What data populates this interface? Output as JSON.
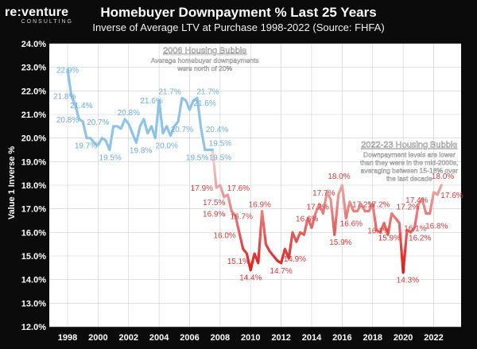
{
  "logo": {
    "main": "re:venture",
    "sub": "CONSULTING"
  },
  "header": {
    "title": "Homebuyer Downpayment % Last 25 Years",
    "subtitle": "Inverse of Average LTV at Purchase 1998-2022 (Source: FHFA)"
  },
  "colors": {
    "background": "#0b0b0b",
    "plot_background": "#ffffff",
    "grid": "#d0d0d0",
    "early_line": "#8fc3ea",
    "early_label": "#6aaee0",
    "late_line_light": "#f3c9c9",
    "late_line_dark": "#e02020",
    "late_label": "#e03a3a",
    "annotation_text": "#ffffff"
  },
  "chart_data": {
    "type": "line",
    "title": "Homebuyer Downpayment % Last 25 Years",
    "subtitle": "Inverse of Average LTV at Purchase 1998-2022 (Source: FHFA)",
    "xlabel": "",
    "ylabel": "Value 1 Inverse %",
    "xlim": [
      1996.8,
      2023.8
    ],
    "ylim": [
      12.0,
      24.0
    ],
    "x_ticks": [
      1998,
      2000,
      2002,
      2004,
      2006,
      2008,
      2010,
      2012,
      2014,
      2016,
      2018,
      2020,
      2022
    ],
    "y_ticks": [
      "12.0%",
      "13.0%",
      "14.0%",
      "15.0%",
      "16.0%",
      "17.0%",
      "18.0%",
      "19.0%",
      "20.0%",
      "21.0%",
      "22.0%",
      "23.0%",
      "24.0%"
    ],
    "grid": true,
    "series": [
      {
        "x": [
          1998.0,
          1998.25,
          1998.5,
          1998.75,
          1999.0,
          1999.25,
          1999.5,
          1999.75,
          2000.0,
          2000.25,
          2000.5,
          2000.75,
          2001.0,
          2001.25,
          2001.5,
          2001.75,
          2002.0,
          2002.25,
          2002.5,
          2002.75,
          2003.0,
          2003.25,
          2003.5,
          2003.75,
          2004.0,
          2004.25,
          2004.5,
          2004.75,
          2005.0,
          2005.25,
          2005.5,
          2005.75,
          2006.0,
          2006.25,
          2006.5,
          2006.75,
          2007.0,
          2007.25,
          2007.5,
          2007.75,
          2008.0,
          2008.25,
          2008.5,
          2008.75,
          2009.0,
          2009.25,
          2009.5,
          2009.75,
          2010.0,
          2010.25,
          2010.5,
          2010.75,
          2011.0,
          2011.25,
          2011.5,
          2011.75,
          2012.0,
          2012.25,
          2012.5,
          2012.75,
          2013.0,
          2013.25,
          2013.5,
          2013.75,
          2014.0,
          2014.25,
          2014.5,
          2014.75,
          2015.0,
          2015.25,
          2015.5,
          2015.75,
          2016.0,
          2016.25,
          2016.5,
          2016.75,
          2017.0,
          2017.25,
          2017.5,
          2017.75,
          2018.0,
          2018.25,
          2018.5,
          2018.75,
          2019.0,
          2019.25,
          2019.5,
          2019.75,
          2020.0,
          2020.25,
          2020.5,
          2020.75,
          2021.0,
          2021.25,
          2021.5,
          2021.75,
          2022.0,
          2022.25,
          2022.5
        ],
        "y": [
          22.9,
          21.8,
          21.4,
          20.8,
          20.7,
          20.0,
          20.0,
          19.8,
          19.7,
          20.0,
          19.9,
          19.5,
          20.5,
          20.5,
          20.4,
          20.8,
          20.6,
          20.2,
          19.8,
          20.5,
          20.8,
          20.2,
          20.5,
          20.0,
          21.6,
          20.2,
          20.5,
          20.1,
          20.5,
          20.7,
          21.7,
          21.6,
          21.2,
          21.6,
          21.7,
          20.4,
          19.5,
          19.5,
          19.5,
          17.9,
          18.0,
          17.5,
          17.6,
          16.9,
          16.7,
          16.0,
          15.3,
          15.1,
          14.4,
          15.1,
          14.7,
          16.9,
          15.5,
          15.2,
          15.0,
          14.8,
          14.7,
          15.3,
          14.9,
          16.0,
          15.6,
          16.0,
          15.9,
          16.6,
          16.2,
          16.8,
          17.2,
          16.8,
          17.7,
          17.4,
          15.9,
          17.6,
          18.0,
          16.6,
          17.3,
          16.9,
          16.9,
          17.2,
          16.9,
          16.9,
          17.2,
          16.1,
          16.0,
          16.4,
          15.9,
          16.8,
          16.6,
          16.4,
          14.3,
          16.1,
          16.0,
          16.2,
          17.2,
          17.4,
          16.8,
          16.8,
          17.7,
          17.6,
          18.0
        ]
      }
    ],
    "data_labels": [
      {
        "text": "22.9%",
        "x": 1998.0,
        "y": 22.9,
        "group": "early"
      },
      {
        "text": "21.8%",
        "x": 1997.8,
        "y": 21.8,
        "group": "early"
      },
      {
        "text": "21.4%",
        "x": 1998.9,
        "y": 21.4,
        "group": "early"
      },
      {
        "text": "20.8%",
        "x": 1998.0,
        "y": 20.8,
        "group": "early"
      },
      {
        "text": "20.7%",
        "x": 2000.0,
        "y": 20.7,
        "group": "early"
      },
      {
        "text": "19.7%",
        "x": 1999.2,
        "y": 19.7,
        "group": "early"
      },
      {
        "text": "19.5%",
        "x": 2000.8,
        "y": 19.2,
        "group": "early"
      },
      {
        "text": "20.8%",
        "x": 2002.0,
        "y": 21.1,
        "group": "early"
      },
      {
        "text": "19.8%",
        "x": 2002.8,
        "y": 19.5,
        "group": "early"
      },
      {
        "text": "21.6%",
        "x": 2003.5,
        "y": 21.6,
        "group": "early"
      },
      {
        "text": "20.0%",
        "x": 2004.5,
        "y": 19.7,
        "group": "early"
      },
      {
        "text": "21.7%",
        "x": 2004.7,
        "y": 22.0,
        "group": "early"
      },
      {
        "text": "20.7%",
        "x": 2005.5,
        "y": 20.4,
        "group": "early"
      },
      {
        "text": "21.7%",
        "x": 2007.2,
        "y": 22.0,
        "group": "early"
      },
      {
        "text": "21.6%",
        "x": 2007.0,
        "y": 21.5,
        "group": "early"
      },
      {
        "text": "20.4%",
        "x": 2007.8,
        "y": 20.4,
        "group": "early"
      },
      {
        "text": "19.5%",
        "x": 2008.0,
        "y": 19.8,
        "group": "early"
      },
      {
        "text": "19.5%",
        "x": 2006.5,
        "y": 19.2,
        "group": "early"
      },
      {
        "text": "19.5%",
        "x": 2008.0,
        "y": 19.2,
        "group": "early"
      },
      {
        "text": "17.9%",
        "x": 2006.8,
        "y": 17.9,
        "group": "late"
      },
      {
        "text": "17.6%",
        "x": 2009.2,
        "y": 17.9,
        "group": "late"
      },
      {
        "text": "17.5%",
        "x": 2007.6,
        "y": 17.3,
        "group": "late"
      },
      {
        "text": "16.9%",
        "x": 2007.6,
        "y": 16.8,
        "group": "late"
      },
      {
        "text": "16.7%",
        "x": 2009.4,
        "y": 16.7,
        "group": "late"
      },
      {
        "text": "16.0%",
        "x": 2008.3,
        "y": 15.9,
        "group": "late"
      },
      {
        "text": "16.9%",
        "x": 2010.6,
        "y": 17.2,
        "group": "late"
      },
      {
        "text": "15.1%",
        "x": 2009.2,
        "y": 14.8,
        "group": "late"
      },
      {
        "text": "14.4%",
        "x": 2010.0,
        "y": 14.1,
        "group": "late"
      },
      {
        "text": "14.7%",
        "x": 2012.0,
        "y": 14.4,
        "group": "late"
      },
      {
        "text": "14.9%",
        "x": 2012.9,
        "y": 14.9,
        "group": "late"
      },
      {
        "text": "16.6%",
        "x": 2013.7,
        "y": 16.6,
        "group": "late"
      },
      {
        "text": "17.2%",
        "x": 2014.4,
        "y": 17.1,
        "group": "late"
      },
      {
        "text": "17.7%",
        "x": 2014.8,
        "y": 17.7,
        "group": "late"
      },
      {
        "text": "18.0%",
        "x": 2015.8,
        "y": 18.4,
        "group": "late"
      },
      {
        "text": "15.9%",
        "x": 2015.9,
        "y": 15.6,
        "group": "late"
      },
      {
        "text": "16.6%",
        "x": 2016.6,
        "y": 16.4,
        "group": "late"
      },
      {
        "text": "17.2%",
        "x": 2017.4,
        "y": 17.2,
        "group": "late"
      },
      {
        "text": "17.2%",
        "x": 2018.4,
        "y": 17.2,
        "group": "late"
      },
      {
        "text": "16.1%",
        "x": 2018.4,
        "y": 16.1,
        "group": "late"
      },
      {
        "text": "15.9%",
        "x": 2019.1,
        "y": 15.8,
        "group": "late"
      },
      {
        "text": "17.2%",
        "x": 2020.3,
        "y": 17.1,
        "group": "late"
      },
      {
        "text": "14.3%",
        "x": 2020.3,
        "y": 14.0,
        "group": "late"
      },
      {
        "text": "16.1%",
        "x": 2020.8,
        "y": 16.2,
        "group": "late"
      },
      {
        "text": "17.4%",
        "x": 2020.9,
        "y": 17.4,
        "group": "late"
      },
      {
        "text": "16.2%",
        "x": 2021.1,
        "y": 15.8,
        "group": "late"
      },
      {
        "text": "16.8%",
        "x": 2022.2,
        "y": 16.3,
        "group": "late"
      },
      {
        "text": "18.0%",
        "x": 2022.6,
        "y": 18.4,
        "group": "late"
      },
      {
        "text": "17.6%",
        "x": 2023.2,
        "y": 17.6,
        "group": "late"
      }
    ],
    "annotations": [
      {
        "title": "2006 Housing Bubble",
        "lines": [
          "Average homebuyer downpayments",
          "were north of 20%"
        ],
        "x": 2007.0,
        "y": 23.6
      },
      {
        "title": "2022-23 Housing Bubble",
        "lines": [
          "Downpayment levels are lower",
          "than they were in the mid-2000s,",
          "averaging between 15-18% over",
          "the last decade"
        ],
        "x": 2020.4,
        "y": 19.6
      }
    ]
  }
}
